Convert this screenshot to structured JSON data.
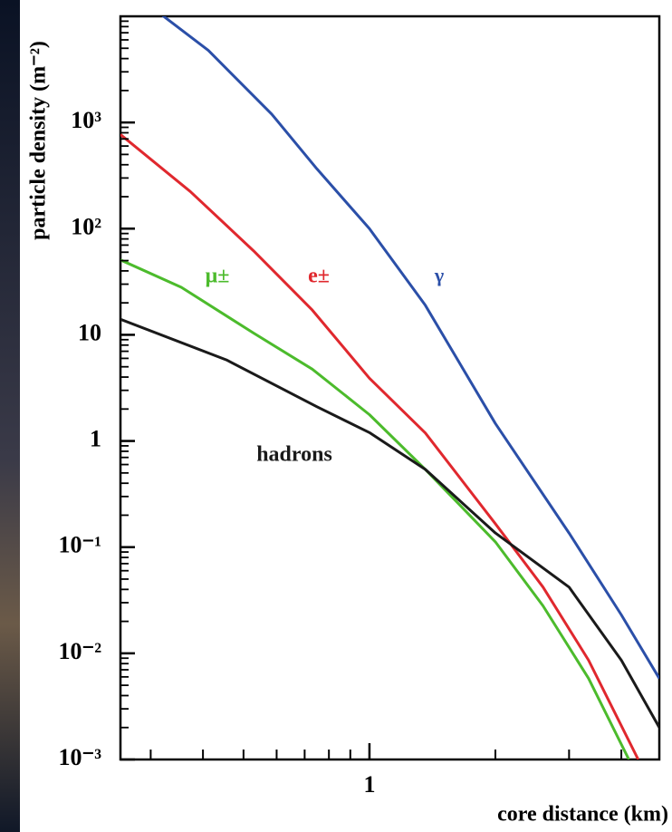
{
  "chart_data": {
    "type": "line",
    "xlabel": "core distance (km)",
    "ylabel": "particle density (m⁻²)",
    "log_x": true,
    "log_y": true,
    "xlim": [
      0.254,
      4.93
    ],
    "ylim": [
      0.001,
      10000
    ],
    "xticks": [
      1
    ],
    "xminor_ticks": [
      0.3,
      0.4,
      0.5,
      0.6,
      0.7,
      0.8,
      0.9,
      2,
      3,
      4
    ],
    "yticks": [
      {
        "value": 0.001,
        "label": "10⁻³"
      },
      {
        "value": 0.01,
        "label": "10⁻²"
      },
      {
        "value": 0.1,
        "label": "10⁻¹"
      },
      1,
      10,
      {
        "value": 100,
        "label": "10²"
      },
      {
        "value": 1000,
        "label": "10³"
      }
    ],
    "yminor_multipliers": [
      2,
      3,
      4,
      5,
      6,
      7,
      8,
      9
    ],
    "series": [
      {
        "name": "γ",
        "color": "#2b4fa8",
        "x": [
          0.3,
          0.313,
          0.412,
          0.584,
          0.749,
          1,
          1.36,
          2,
          3,
          4,
          4.93
        ],
        "y": [
          13000,
          10900,
          4780,
          1200,
          365,
          100,
          19,
          1.46,
          0.136,
          0.023,
          0.0058
        ]
      },
      {
        "name": "e±",
        "color": "#e0282e",
        "x": [
          0.254,
          0.373,
          0.528,
          0.73,
          1,
          1.36,
          2,
          2.6,
          3.34,
          4.39
        ],
        "y": [
          770,
          224,
          62,
          17.1,
          3.9,
          1.19,
          0.166,
          0.042,
          0.0086,
          0.001
        ]
      },
      {
        "name": "μ±",
        "color": "#4cbb2c",
        "x": [
          0.254,
          0.355,
          0.528,
          0.73,
          1,
          1.36,
          2,
          2.6,
          3.34,
          4.17
        ],
        "y": [
          50.7,
          28,
          10.4,
          4.75,
          1.77,
          0.54,
          0.112,
          0.028,
          0.0058,
          0.001
        ]
      },
      {
        "name": "hadrons",
        "color": "#1a1a1a",
        "x": [
          0.254,
          0.455,
          0.749,
          1,
          1.36,
          2,
          3,
          4,
          4.93
        ],
        "y": [
          14,
          5.8,
          2.1,
          1.2,
          0.54,
          0.136,
          0.042,
          0.0086,
          0.002
        ]
      }
    ]
  }
}
